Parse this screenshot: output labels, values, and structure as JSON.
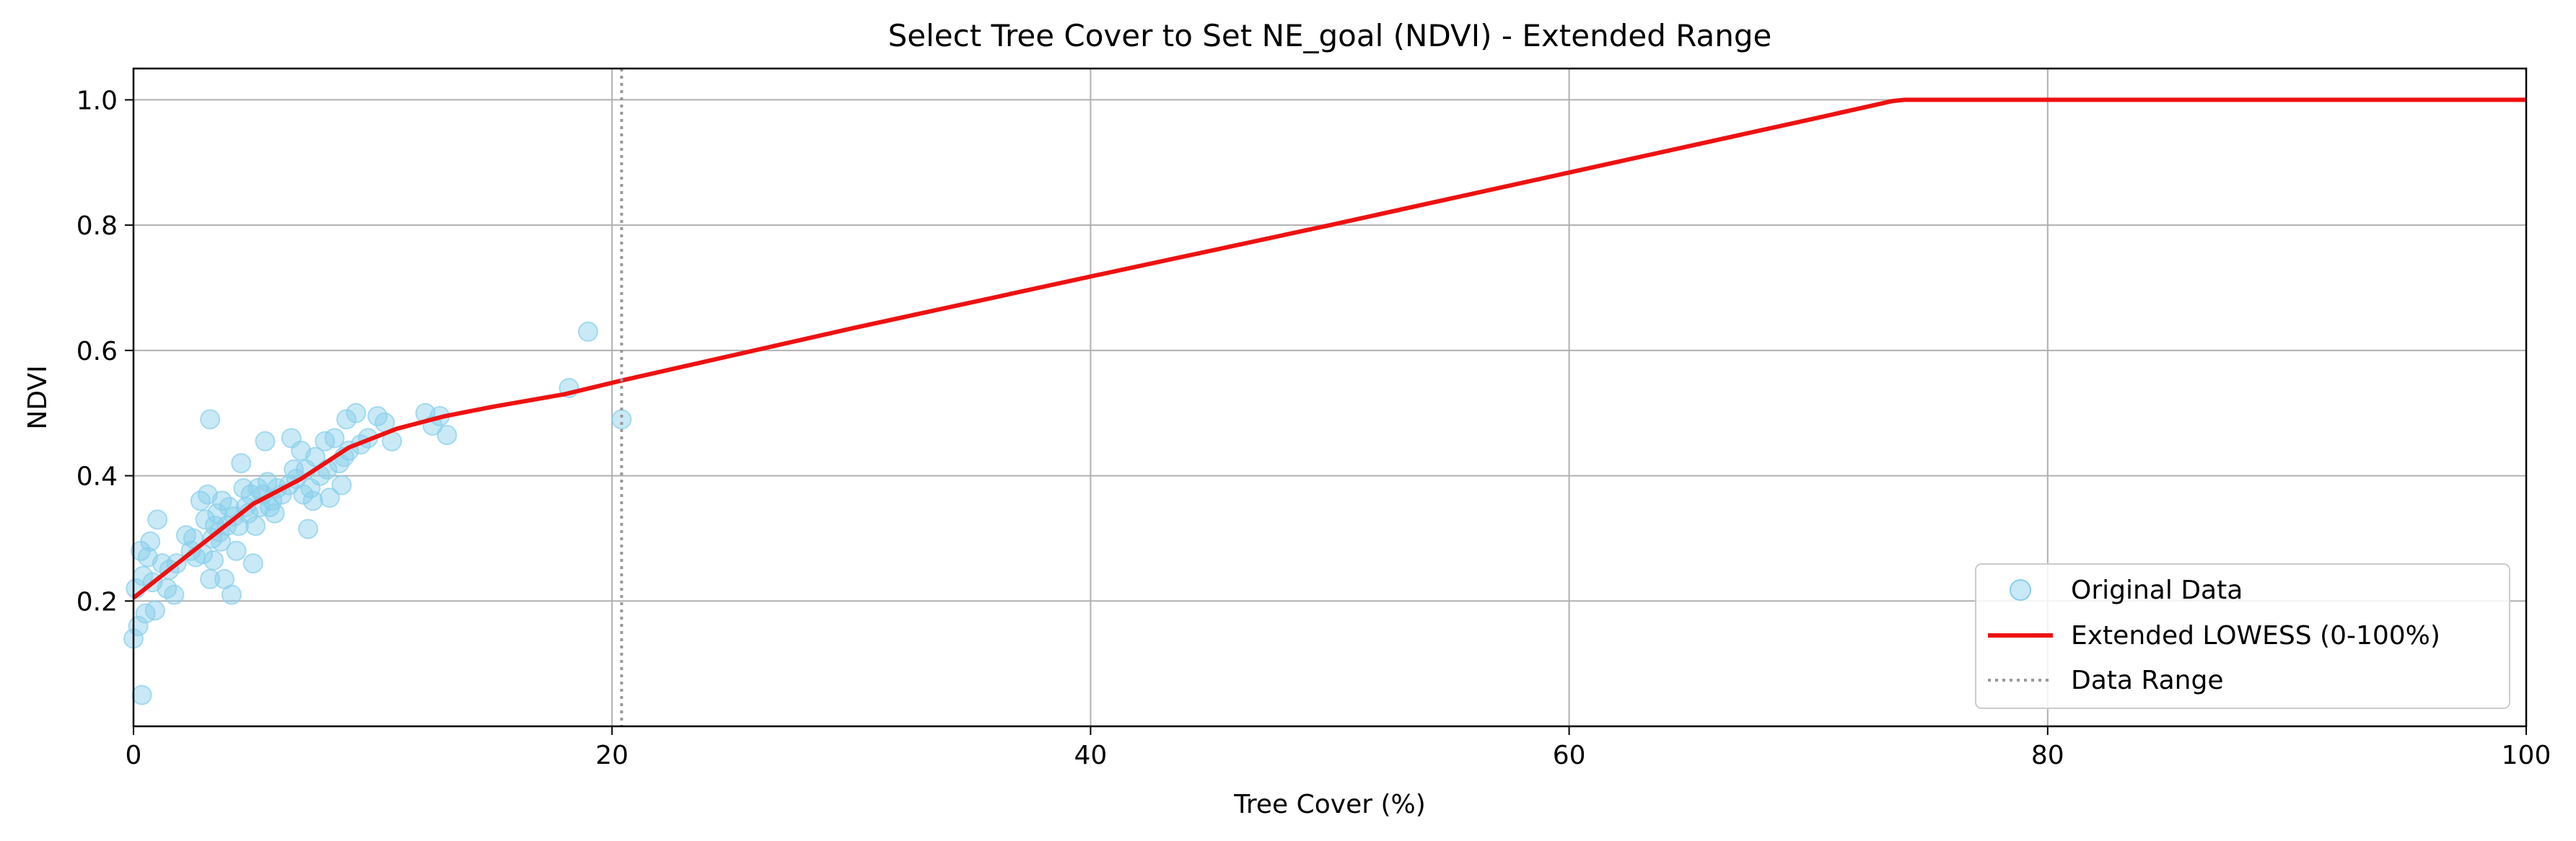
{
  "chart_data": {
    "type": "scatter",
    "title": "Select Tree Cover to Set NE_goal (NDVI) - Extended Range",
    "xlabel": "Tree Cover (%)",
    "ylabel": "NDVI",
    "xlim": [
      0,
      100
    ],
    "ylim": [
      0,
      1.05
    ],
    "xticks": [
      0,
      20,
      40,
      60,
      80,
      100
    ],
    "yticks": [
      0.2,
      0.4,
      0.6,
      0.8,
      1.0
    ],
    "xtick_labels": [
      "0",
      "20",
      "40",
      "60",
      "80",
      "100"
    ],
    "ytick_labels": [
      "0.2",
      "0.4",
      "0.6",
      "0.8",
      "1.0"
    ],
    "grid": true,
    "legend_position": "lower-right",
    "series": [
      {
        "name": "Original Data",
        "kind": "scatter",
        "color": "#87ceeb",
        "points": [
          [
            0.0,
            0.14
          ],
          [
            0.1,
            0.22
          ],
          [
            0.2,
            0.16
          ],
          [
            0.3,
            0.28
          ],
          [
            0.35,
            0.05
          ],
          [
            0.4,
            0.24
          ],
          [
            0.5,
            0.18
          ],
          [
            0.6,
            0.27
          ],
          [
            0.7,
            0.295
          ],
          [
            0.8,
            0.23
          ],
          [
            0.9,
            0.185
          ],
          [
            1.0,
            0.33
          ],
          [
            1.2,
            0.26
          ],
          [
            1.4,
            0.22
          ],
          [
            1.5,
            0.25
          ],
          [
            1.7,
            0.21
          ],
          [
            1.8,
            0.26
          ],
          [
            2.2,
            0.305
          ],
          [
            2.4,
            0.28
          ],
          [
            2.5,
            0.3
          ],
          [
            2.6,
            0.27
          ],
          [
            2.8,
            0.36
          ],
          [
            2.9,
            0.275
          ],
          [
            3.0,
            0.33
          ],
          [
            3.1,
            0.37
          ],
          [
            3.2,
            0.49
          ],
          [
            3.2,
            0.235
          ],
          [
            3.3,
            0.3
          ],
          [
            3.35,
            0.265
          ],
          [
            3.4,
            0.32
          ],
          [
            3.5,
            0.34
          ],
          [
            3.6,
            0.31
          ],
          [
            3.65,
            0.295
          ],
          [
            3.7,
            0.36
          ],
          [
            3.8,
            0.235
          ],
          [
            3.9,
            0.32
          ],
          [
            4.0,
            0.35
          ],
          [
            4.1,
            0.21
          ],
          [
            4.2,
            0.335
          ],
          [
            4.3,
            0.28
          ],
          [
            4.4,
            0.32
          ],
          [
            4.5,
            0.42
          ],
          [
            4.6,
            0.38
          ],
          [
            4.7,
            0.35
          ],
          [
            4.8,
            0.34
          ],
          [
            4.9,
            0.37
          ],
          [
            5.0,
            0.26
          ],
          [
            5.1,
            0.32
          ],
          [
            5.2,
            0.38
          ],
          [
            5.3,
            0.35
          ],
          [
            5.4,
            0.37
          ],
          [
            5.5,
            0.455
          ],
          [
            5.6,
            0.39
          ],
          [
            5.7,
            0.35
          ],
          [
            5.8,
            0.36
          ],
          [
            5.9,
            0.34
          ],
          [
            6.0,
            0.38
          ],
          [
            6.2,
            0.37
          ],
          [
            6.5,
            0.385
          ],
          [
            6.6,
            0.46
          ],
          [
            6.7,
            0.41
          ],
          [
            6.8,
            0.395
          ],
          [
            7.0,
            0.44
          ],
          [
            7.1,
            0.37
          ],
          [
            7.2,
            0.41
          ],
          [
            7.3,
            0.315
          ],
          [
            7.4,
            0.38
          ],
          [
            7.5,
            0.36
          ],
          [
            7.6,
            0.43
          ],
          [
            7.8,
            0.4
          ],
          [
            8.0,
            0.455
          ],
          [
            8.1,
            0.41
          ],
          [
            8.2,
            0.365
          ],
          [
            8.4,
            0.46
          ],
          [
            8.6,
            0.42
          ],
          [
            8.7,
            0.385
          ],
          [
            8.8,
            0.43
          ],
          [
            8.9,
            0.49
          ],
          [
            9.0,
            0.44
          ],
          [
            9.3,
            0.5
          ],
          [
            9.5,
            0.45
          ],
          [
            9.8,
            0.46
          ],
          [
            10.2,
            0.495
          ],
          [
            10.5,
            0.485
          ],
          [
            10.8,
            0.455
          ],
          [
            12.2,
            0.5
          ],
          [
            12.5,
            0.48
          ],
          [
            12.8,
            0.495
          ],
          [
            13.1,
            0.465
          ],
          [
            18.2,
            0.54
          ],
          [
            19.0,
            0.63
          ],
          [
            20.4,
            0.49
          ]
        ]
      },
      {
        "name": "Extended LOWESS (0-100%)",
        "kind": "line",
        "color": "#ee1111",
        "x": [
          0,
          1,
          2,
          3,
          4,
          5,
          6,
          7,
          8,
          9,
          10,
          11,
          12,
          13,
          15,
          18,
          20.4,
          30,
          40,
          50,
          60,
          70,
          73.5,
          74,
          80,
          90,
          100
        ],
        "y": [
          0.205,
          0.235,
          0.265,
          0.295,
          0.325,
          0.355,
          0.375,
          0.395,
          0.42,
          0.445,
          0.46,
          0.475,
          0.485,
          0.495,
          0.51,
          0.53,
          0.552,
          0.635,
          0.718,
          0.8,
          0.884,
          0.968,
          0.998,
          1.0,
          1.0,
          1.0,
          1.0
        ]
      },
      {
        "name": "Data Range",
        "kind": "vline",
        "color": "#999999",
        "x": 20.4
      }
    ]
  }
}
